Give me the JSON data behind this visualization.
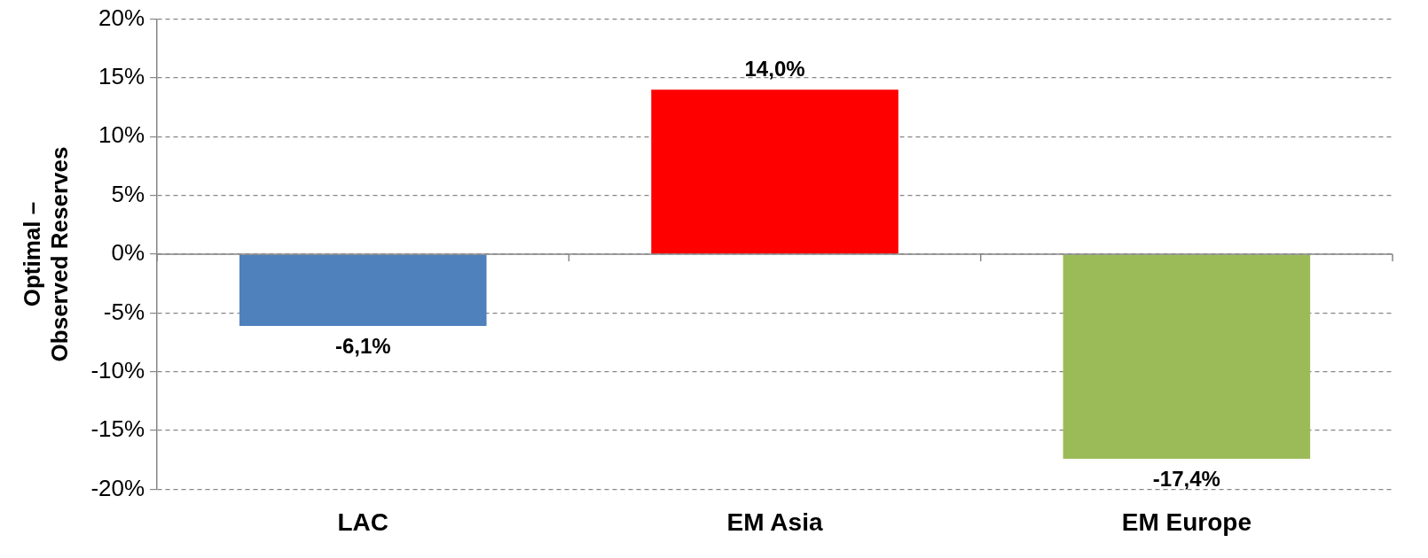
{
  "chart_data": {
    "type": "bar",
    "ylabel": "Optimal – Observed Reserves",
    "categories": [
      "LAC",
      "EM Asia",
      "EM Europe"
    ],
    "values": [
      -6.1,
      14.0,
      -17.4
    ],
    "colors": [
      "#4f81bd",
      "#ff0000",
      "#9bbb59"
    ],
    "value_labels": [
      "-6,1%",
      "14,0%",
      "-17,4%"
    ],
    "ylim": [
      -20,
      20
    ],
    "yticks": [
      {
        "value": -20,
        "label": "-20%"
      },
      {
        "value": -15,
        "label": "-15%"
      },
      {
        "value": -10,
        "label": "-10%"
      },
      {
        "value": -5,
        "label": "-5%"
      },
      {
        "value": 0,
        "label": "0%"
      },
      {
        "value": 5,
        "label": "5%"
      },
      {
        "value": 10,
        "label": "10%"
      },
      {
        "value": 15,
        "label": "15%"
      },
      {
        "value": 20,
        "label": "20%"
      }
    ],
    "grid": "y",
    "legend": false
  }
}
